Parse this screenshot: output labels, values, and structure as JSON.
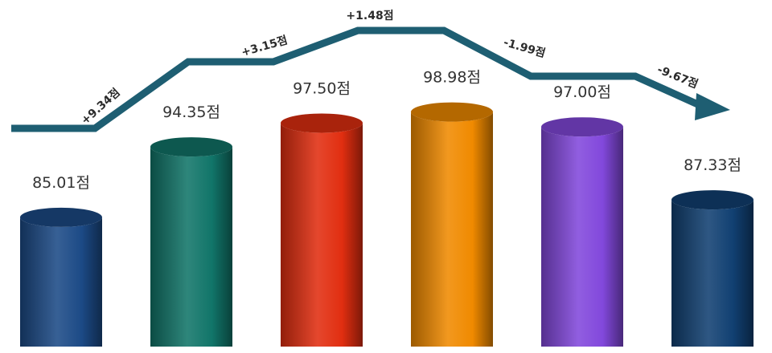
{
  "chart_data": {
    "type": "bar",
    "style": "3d-cylinder",
    "values": [
      85.01,
      94.35,
      97.5,
      98.98,
      97.0,
      87.33
    ],
    "value_labels": [
      "85.01점",
      "94.35점",
      "97.50점",
      "98.98점",
      "97.00점",
      "87.33점"
    ],
    "changes": [
      "+9.34점",
      "+3.15점",
      "+1.48점",
      "-1.99점",
      "-9.67점"
    ],
    "colors": [
      "#1c4a86",
      "#117569",
      "#e12e10",
      "#f08a00",
      "#8248dc",
      "#114072"
    ],
    "trend_line_color": "#1e5e72",
    "grid": false
  }
}
